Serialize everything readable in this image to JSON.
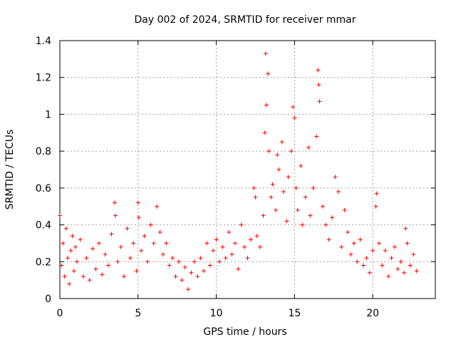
{
  "chart_data": {
    "type": "scatter",
    "title": "Day 002 of 2024, SRMTID for receiver mmar",
    "xlabel": "GPS time / hours",
    "ylabel": "SRMTID / TECUs",
    "xlim": [
      0,
      24
    ],
    "ylim": [
      0,
      1.4
    ],
    "x_ticks": [
      0,
      5,
      10,
      15,
      20
    ],
    "x_tick_labels": [
      "0",
      "5",
      "10",
      "15",
      "20"
    ],
    "y_ticks": [
      0,
      0.2,
      0.4,
      0.6,
      0.8,
      1.0,
      1.2,
      1.4
    ],
    "y_tick_labels": [
      "0",
      "0.2",
      "0.4",
      "0.6",
      "0.8",
      "1",
      "1.2",
      "1.4"
    ],
    "grid": true,
    "marker": "plus",
    "color": "#ff0000",
    "series": [
      {
        "name": "SRMTID",
        "points": [
          [
            0.0,
            0.45
          ],
          [
            0.1,
            0.18
          ],
          [
            0.2,
            0.3
          ],
          [
            0.3,
            0.12
          ],
          [
            0.4,
            0.38
          ],
          [
            0.5,
            0.22
          ],
          [
            0.6,
            0.08
          ],
          [
            0.7,
            0.26
          ],
          [
            0.8,
            0.34
          ],
          [
            0.9,
            0.15
          ],
          [
            1.0,
            0.28
          ],
          [
            1.1,
            0.2
          ],
          [
            1.3,
            0.32
          ],
          [
            1.5,
            0.12
          ],
          [
            1.7,
            0.22
          ],
          [
            1.9,
            0.1
          ],
          [
            2.1,
            0.27
          ],
          [
            2.3,
            0.16
          ],
          [
            2.5,
            0.3
          ],
          [
            2.7,
            0.13
          ],
          [
            2.9,
            0.24
          ],
          [
            3.1,
            0.18
          ],
          [
            3.3,
            0.35
          ],
          [
            3.5,
            0.52
          ],
          [
            3.55,
            0.45
          ],
          [
            3.7,
            0.2
          ],
          [
            3.9,
            0.28
          ],
          [
            4.1,
            0.12
          ],
          [
            4.3,
            0.38
          ],
          [
            4.5,
            0.22
          ],
          [
            4.7,
            0.3
          ],
          [
            4.9,
            0.15
          ],
          [
            5.0,
            0.52
          ],
          [
            5.05,
            0.44
          ],
          [
            5.2,
            0.26
          ],
          [
            5.4,
            0.34
          ],
          [
            5.6,
            0.2
          ],
          [
            5.8,
            0.4
          ],
          [
            6.0,
            0.3
          ],
          [
            6.2,
            0.5
          ],
          [
            6.4,
            0.36
          ],
          [
            6.6,
            0.24
          ],
          [
            6.8,
            0.3
          ],
          [
            7.0,
            0.18
          ],
          [
            7.2,
            0.22
          ],
          [
            7.4,
            0.12
          ],
          [
            7.6,
            0.2
          ],
          [
            7.8,
            0.1
          ],
          [
            8.0,
            0.17
          ],
          [
            8.2,
            0.05
          ],
          [
            8.4,
            0.14
          ],
          [
            8.6,
            0.2
          ],
          [
            8.8,
            0.12
          ],
          [
            9.0,
            0.22
          ],
          [
            9.2,
            0.15
          ],
          [
            9.4,
            0.3
          ],
          [
            9.6,
            0.18
          ],
          [
            9.8,
            0.26
          ],
          [
            10.0,
            0.32
          ],
          [
            10.2,
            0.2
          ],
          [
            10.4,
            0.28
          ],
          [
            10.6,
            0.22
          ],
          [
            10.8,
            0.36
          ],
          [
            11.0,
            0.24
          ],
          [
            11.2,
            0.3
          ],
          [
            11.4,
            0.16
          ],
          [
            11.6,
            0.4
          ],
          [
            11.8,
            0.28
          ],
          [
            12.0,
            0.22
          ],
          [
            12.2,
            0.32
          ],
          [
            12.4,
            0.6
          ],
          [
            12.5,
            0.55
          ],
          [
            12.6,
            0.34
          ],
          [
            12.8,
            0.28
          ],
          [
            13.0,
            0.45
          ],
          [
            13.1,
            0.9
          ],
          [
            13.15,
            1.33
          ],
          [
            13.2,
            1.05
          ],
          [
            13.3,
            1.22
          ],
          [
            13.35,
            0.8
          ],
          [
            13.5,
            0.55
          ],
          [
            13.6,
            0.62
          ],
          [
            13.8,
            0.48
          ],
          [
            13.9,
            0.78
          ],
          [
            14.0,
            0.7
          ],
          [
            14.2,
            0.85
          ],
          [
            14.3,
            0.58
          ],
          [
            14.5,
            0.42
          ],
          [
            14.6,
            0.66
          ],
          [
            14.8,
            0.8
          ],
          [
            14.9,
            1.04
          ],
          [
            15.0,
            0.98
          ],
          [
            15.1,
            0.6
          ],
          [
            15.2,
            0.48
          ],
          [
            15.4,
            0.72
          ],
          [
            15.5,
            0.4
          ],
          [
            15.7,
            0.55
          ],
          [
            15.9,
            0.82
          ],
          [
            16.0,
            0.45
          ],
          [
            16.2,
            0.6
          ],
          [
            16.4,
            0.88
          ],
          [
            16.5,
            1.24
          ],
          [
            16.55,
            1.16
          ],
          [
            16.6,
            1.07
          ],
          [
            16.8,
            0.5
          ],
          [
            17.0,
            0.4
          ],
          [
            17.2,
            0.32
          ],
          [
            17.4,
            0.44
          ],
          [
            17.6,
            0.66
          ],
          [
            17.8,
            0.58
          ],
          [
            18.0,
            0.28
          ],
          [
            18.2,
            0.48
          ],
          [
            18.4,
            0.36
          ],
          [
            18.6,
            0.24
          ],
          [
            18.8,
            0.3
          ],
          [
            19.0,
            0.2
          ],
          [
            19.2,
            0.32
          ],
          [
            19.4,
            0.18
          ],
          [
            19.6,
            0.22
          ],
          [
            19.8,
            0.14
          ],
          [
            20.0,
            0.26
          ],
          [
            20.2,
            0.5
          ],
          [
            20.25,
            0.57
          ],
          [
            20.4,
            0.3
          ],
          [
            20.6,
            0.18
          ],
          [
            20.8,
            0.26
          ],
          [
            21.0,
            0.12
          ],
          [
            21.2,
            0.22
          ],
          [
            21.4,
            0.28
          ],
          [
            21.6,
            0.16
          ],
          [
            21.8,
            0.2
          ],
          [
            22.0,
            0.14
          ],
          [
            22.1,
            0.38
          ],
          [
            22.2,
            0.3
          ],
          [
            22.4,
            0.18
          ],
          [
            22.6,
            0.24
          ],
          [
            22.8,
            0.15
          ]
        ]
      }
    ]
  }
}
